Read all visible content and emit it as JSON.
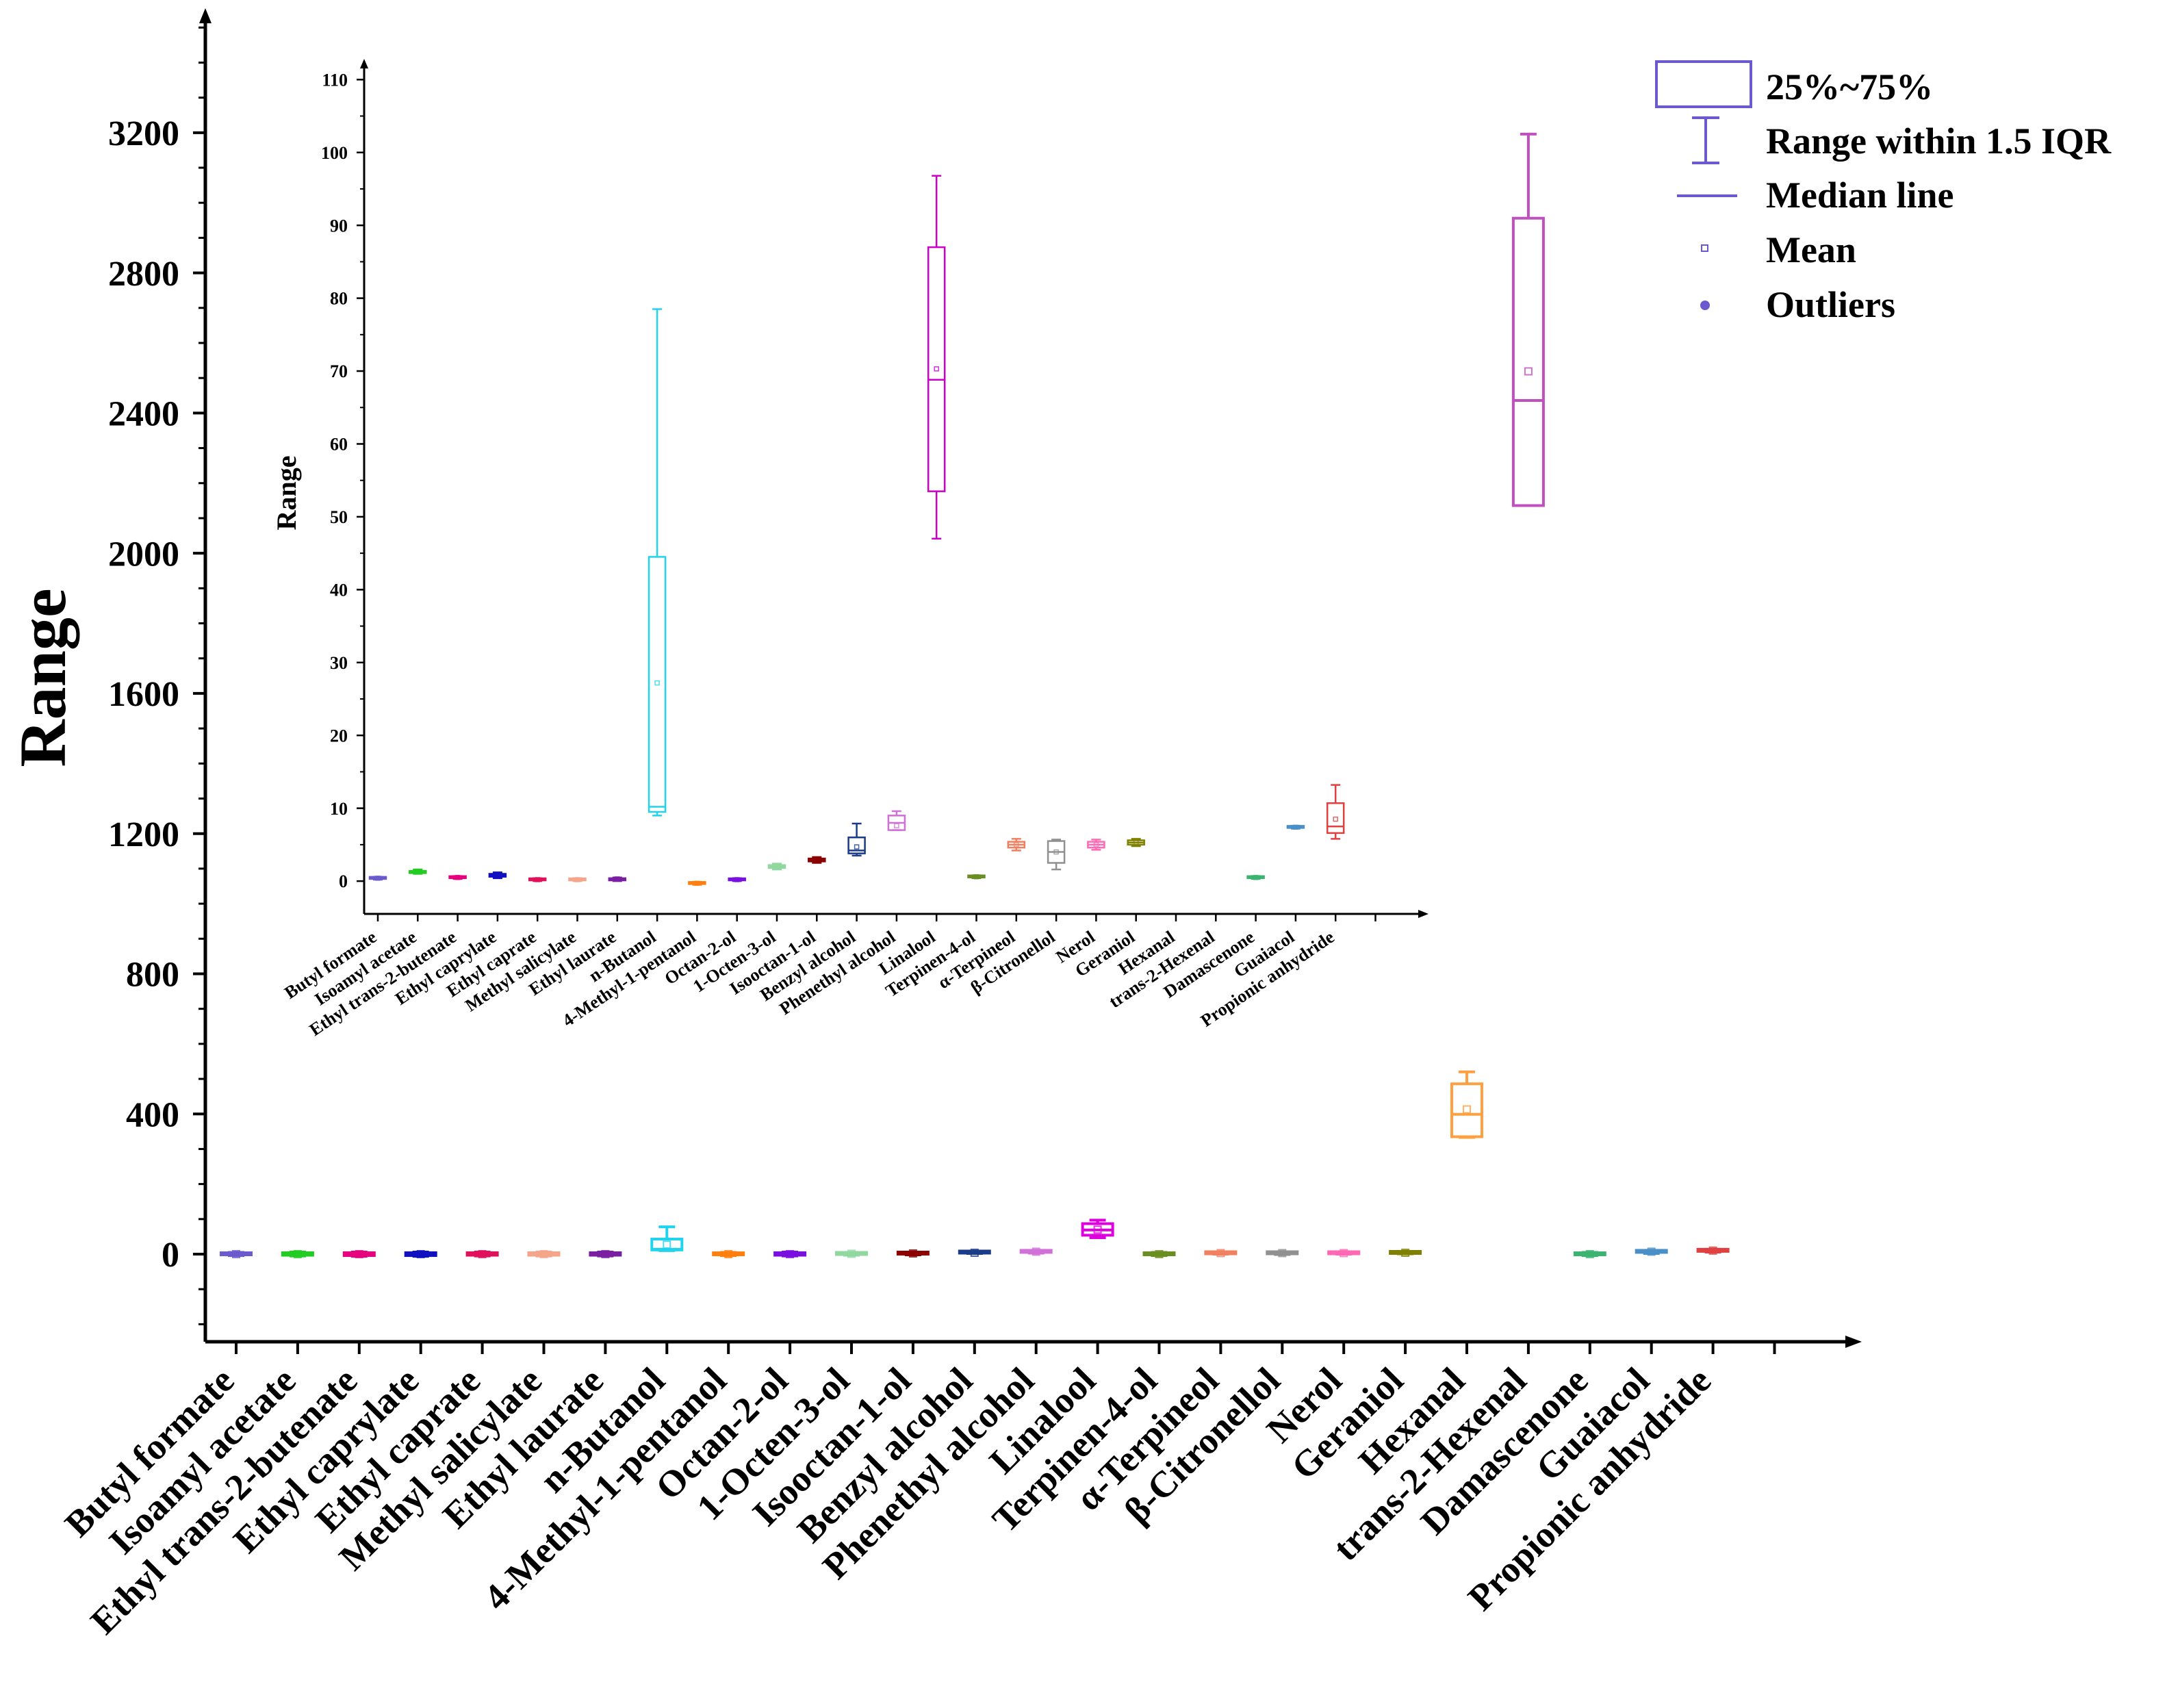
{
  "chart_data": [
    {
      "type": "box",
      "name": "main",
      "title": "",
      "xlabel": "",
      "ylabel": "Range",
      "ylim": [
        -250,
        3520
      ],
      "yticks": [
        0,
        400,
        800,
        1200,
        1600,
        2000,
        2400,
        2800,
        3200
      ],
      "legend": {
        "position": "top-right",
        "entries": [
          "25%~75%",
          "Range within 1.5 IQR",
          "Median line",
          "Mean",
          "Outliers"
        ]
      },
      "categories": [
        "Butyl formate",
        "Isoamyl acetate",
        "Ethyl trans-2-butenate",
        "Ethyl caprylate",
        "Ethyl caprate",
        "Methyl salicylate",
        "Ethyl laurate",
        "n-Butanol",
        "4-Methyl-1-pentanol",
        "Octan-2-ol",
        "1-Octen-3-ol",
        "Isooctan-1-ol",
        "Benzyl alcohol",
        "Phenethyl alcohol",
        "Linalool",
        "Terpinen-4-ol",
        "α-Terpineol",
        "β-Citronellol",
        "Nerol",
        "Geraniol",
        "Hexanal",
        "trans-2-Hexenal",
        "Damascenone",
        "Guaiacol",
        "Propionic anhydride"
      ],
      "colors": [
        "#6a5acd",
        "#22cc22",
        "#e6007e",
        "#1010c0",
        "#e0105a",
        "#f4a58a",
        "#7b1fa2",
        "#22d3ee",
        "#ff7f0e",
        "#7a10e0",
        "#90d8a0",
        "#8b0000",
        "#1a3a8a",
        "#d070d8",
        "#dd00dd",
        "#6b8e23",
        "#f08060",
        "#909090",
        "#ff69b4",
        "#808000",
        "#ffa040",
        "#c050c0",
        "#3cb371",
        "#4a90c8",
        "#e04040"
      ],
      "boxes": [
        {
          "min": -4,
          "q1": -2,
          "median": 0,
          "mean": 0,
          "q3": 3,
          "max": 5
        },
        {
          "min": -5,
          "q1": -3,
          "median": 0,
          "mean": 0,
          "q3": 4,
          "max": 6
        },
        {
          "min": -6,
          "q1": -4,
          "median": 0,
          "mean": 0,
          "q3": 4,
          "max": 6
        },
        {
          "min": -6,
          "q1": -4,
          "median": 0,
          "mean": 0,
          "q3": 4,
          "max": 6
        },
        {
          "min": -5,
          "q1": -3,
          "median": 0,
          "mean": 0,
          "q3": 4,
          "max": 6
        },
        {
          "min": -5,
          "q1": -3,
          "median": 0,
          "mean": 0,
          "q3": 4,
          "max": 6
        },
        {
          "min": -5,
          "q1": -3,
          "median": 0,
          "mean": 0,
          "q3": 4,
          "max": 6
        },
        {
          "min": 10,
          "q1": 12,
          "median": 14,
          "mean": 27,
          "q3": 43,
          "max": 78
        },
        {
          "min": -4,
          "q1": -2,
          "median": 0,
          "mean": 0,
          "q3": 3,
          "max": 5
        },
        {
          "min": -5,
          "q1": -3,
          "median": 0,
          "mean": 0,
          "q3": 4,
          "max": 6
        },
        {
          "min": -3,
          "q1": -1,
          "median": 1,
          "mean": 1,
          "q3": 3,
          "max": 4
        },
        {
          "min": -2,
          "q1": 0,
          "median": 2,
          "mean": 2,
          "q3": 4,
          "max": 6
        },
        {
          "min": 2,
          "q1": 3,
          "median": 4,
          "mean": 4,
          "q3": 6,
          "max": 8
        },
        {
          "min": 3,
          "q1": 5,
          "median": 7,
          "mean": 7,
          "q3": 9,
          "max": 10
        },
        {
          "min": 47,
          "q1": 54,
          "median": 69,
          "mean": 70,
          "q3": 87,
          "max": 97
        },
        {
          "min": -4,
          "q1": -2,
          "median": 0,
          "mean": 0,
          "q3": 3,
          "max": 5
        },
        {
          "min": 0,
          "q1": 1,
          "median": 3,
          "mean": 3,
          "q3": 5,
          "max": 6
        },
        {
          "min": -1,
          "q1": 1,
          "median": 3,
          "mean": 3,
          "q3": 5,
          "max": 6
        },
        {
          "min": 0,
          "q1": 1,
          "median": 3,
          "mean": 3,
          "q3": 5,
          "max": 6
        },
        {
          "min": 1,
          "q1": 2,
          "median": 4,
          "mean": 4,
          "q3": 6,
          "max": 7
        },
        {
          "min": 333,
          "q1": 335,
          "median": 399,
          "mean": 413,
          "q3": 486,
          "max": 520
        },
        {
          "min": 2136,
          "q1": 2136,
          "median": 2436,
          "mean": 2519,
          "q3": 2956,
          "max": 3196
        },
        {
          "min": -4,
          "q1": -2,
          "median": 0,
          "mean": 0,
          "q3": 3,
          "max": 5
        },
        {
          "min": 2,
          "q1": 5,
          "median": 7,
          "mean": 7,
          "q3": 8,
          "max": 9
        },
        {
          "min": 6,
          "q1": 8,
          "median": 10,
          "mean": 10,
          "q3": 12,
          "max": 14
        }
      ]
    },
    {
      "type": "box",
      "name": "inset",
      "title": "",
      "xlabel": "",
      "ylabel": "Range",
      "ylim": [
        -4.5,
        112
      ],
      "yticks": [
        0,
        10,
        20,
        30,
        40,
        50,
        60,
        70,
        80,
        90,
        100,
        110
      ],
      "categories": [
        "Butyl formate",
        "Isoamyl acetate",
        "Ethyl trans-2-butenate",
        "Ethyl caprylate",
        "Ethyl caprate",
        "Methyl salicylate",
        "Ethyl laurate",
        "n-Butanol",
        "4-Methyl-1-pentanol",
        "Octan-2-ol",
        "1-Octen-3-ol",
        "Isooctan-1-ol",
        "Benzyl alcohol",
        "Phenethyl alcohol",
        "Linalool",
        "Terpinen-4-ol",
        "α-Terpineol",
        "β-Citronellol",
        "Nerol",
        "Geraniol",
        "Hexanal",
        "trans-2-Hexenal",
        "Damascenone",
        "Guaiacol",
        "Propionic anhydride"
      ],
      "colors": [
        "#6a5acd",
        "#22cc22",
        "#e6007e",
        "#1010c0",
        "#e0105a",
        "#f4a58a",
        "#7b1fa2",
        "#22d3ee",
        "#ff7f0e",
        "#7a10e0",
        "#90d8a0",
        "#8b0000",
        "#1a3a8a",
        "#d070d8",
        "#cc00cc",
        "#6b8e23",
        "#f08060",
        "#909090",
        "#ff69b4",
        "#808000",
        "#ffa040",
        "#c050c0",
        "#3cb371",
        "#4a90c8",
        "#e04040"
      ],
      "boxes": [
        {
          "min": 0.2,
          "q1": 0.3,
          "median": 0.4,
          "mean": 0.4,
          "q3": 0.5,
          "max": 0.6
        },
        {
          "min": 1.0,
          "q1": 1.1,
          "median": 1.3,
          "mean": 1.3,
          "q3": 1.4,
          "max": 1.6
        },
        {
          "min": 0.3,
          "q1": 0.4,
          "median": 0.5,
          "mean": 0.5,
          "q3": 0.6,
          "max": 0.7
        },
        {
          "min": 0.4,
          "q1": 0.6,
          "median": 0.8,
          "mean": 0.8,
          "q3": 1.0,
          "max": 1.2
        },
        {
          "min": 0.0,
          "q1": 0.1,
          "median": 0.2,
          "mean": 0.2,
          "q3": 0.3,
          "max": 0.4
        },
        {
          "min": 0.0,
          "q1": 0.1,
          "median": 0.2,
          "mean": 0.2,
          "q3": 0.3,
          "max": 0.4
        },
        {
          "min": 0.0,
          "q1": 0.1,
          "median": 0.3,
          "mean": 0.3,
          "q3": 0.4,
          "max": 0.5
        },
        {
          "min": 9.0,
          "q1": 9.5,
          "median": 10.2,
          "mean": 27.2,
          "q3": 44.5,
          "max": 78.5
        },
        {
          "min": -0.5,
          "q1": -0.4,
          "median": -0.3,
          "mean": -0.3,
          "q3": -0.2,
          "max": -0.1
        },
        {
          "min": 0.0,
          "q1": 0.1,
          "median": 0.2,
          "mean": 0.2,
          "q3": 0.3,
          "max": 0.4
        },
        {
          "min": 1.6,
          "q1": 1.8,
          "median": 2.0,
          "mean": 2.0,
          "q3": 2.2,
          "max": 2.4
        },
        {
          "min": 2.5,
          "q1": 2.7,
          "median": 2.9,
          "mean": 2.9,
          "q3": 3.1,
          "max": 3.3
        },
        {
          "min": 3.5,
          "q1": 3.8,
          "median": 4.2,
          "mean": 4.7,
          "q3": 6.0,
          "max": 7.9
        },
        {
          "min": 7.0,
          "q1": 7.0,
          "median": 8.0,
          "mean": 7.6,
          "q3": 9.0,
          "max": 9.6
        },
        {
          "min": 47.0,
          "q1": 53.5,
          "median": 68.8,
          "mean": 70.3,
          "q3": 87.0,
          "max": 96.8
        },
        {
          "min": 0.4,
          "q1": 0.5,
          "median": 0.6,
          "mean": 0.6,
          "q3": 0.7,
          "max": 0.8
        },
        {
          "min": 4.2,
          "q1": 4.6,
          "median": 5.0,
          "mean": 5.0,
          "q3": 5.4,
          "max": 5.8
        },
        {
          "min": 1.6,
          "q1": 2.5,
          "median": 4.0,
          "mean": 4.0,
          "q3": 5.5,
          "max": 5.7
        },
        {
          "min": 4.3,
          "q1": 4.6,
          "median": 5.0,
          "mean": 5.0,
          "q3": 5.4,
          "max": 5.7
        },
        {
          "min": 4.8,
          "q1": 5.0,
          "median": 5.3,
          "mean": 5.3,
          "q3": 5.6,
          "max": 5.8
        },
        null,
        null,
        {
          "min": 0.3,
          "q1": 0.4,
          "median": 0.5,
          "mean": 0.5,
          "q3": 0.6,
          "max": 0.7
        },
        {
          "min": 7.2,
          "q1": 7.3,
          "median": 7.4,
          "mean": 7.4,
          "q3": 7.5,
          "max": 7.6
        },
        {
          "min": 5.8,
          "q1": 6.6,
          "median": 7.5,
          "mean": 8.5,
          "q3": 10.7,
          "max": 13.2
        }
      ]
    }
  ]
}
